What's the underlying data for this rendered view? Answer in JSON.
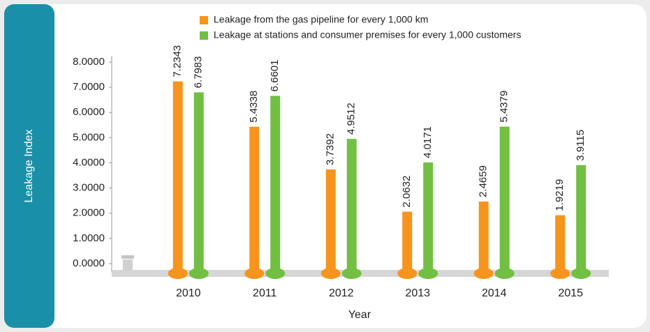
{
  "chart_data": {
    "type": "bar",
    "y_label": "Leakage Index",
    "x_label": "Year",
    "categories": [
      "2010",
      "2011",
      "2012",
      "2013",
      "2014",
      "2015"
    ],
    "series": [
      {
        "name": "Leakage from the gas pipeline for every 1,000 km",
        "color": "#f7941d",
        "values": [
          7.2343,
          5.4338,
          3.7392,
          2.0632,
          2.4659,
          1.9219
        ]
      },
      {
        "name": "Leakage at stations and consumer premises for every 1,000 customers",
        "color": "#72bf44",
        "values": [
          6.7983,
          6.6601,
          4.9512,
          4.0171,
          5.4379,
          3.9115
        ]
      }
    ],
    "ylim": [
      0,
      8
    ],
    "yticks": [
      {
        "value": 0,
        "label": "0.0000"
      },
      {
        "value": 1,
        "label": "1.0000"
      },
      {
        "value": 2,
        "label": "2.0000"
      },
      {
        "value": 3,
        "label": "3.0000"
      },
      {
        "value": 4,
        "label": "4.0000"
      },
      {
        "value": 5,
        "label": "5.0000"
      },
      {
        "value": 6,
        "label": "6.0000"
      },
      {
        "value": 7,
        "label": "7.0000"
      },
      {
        "value": 8,
        "label": "8.0000"
      }
    ],
    "legend": "top"
  }
}
